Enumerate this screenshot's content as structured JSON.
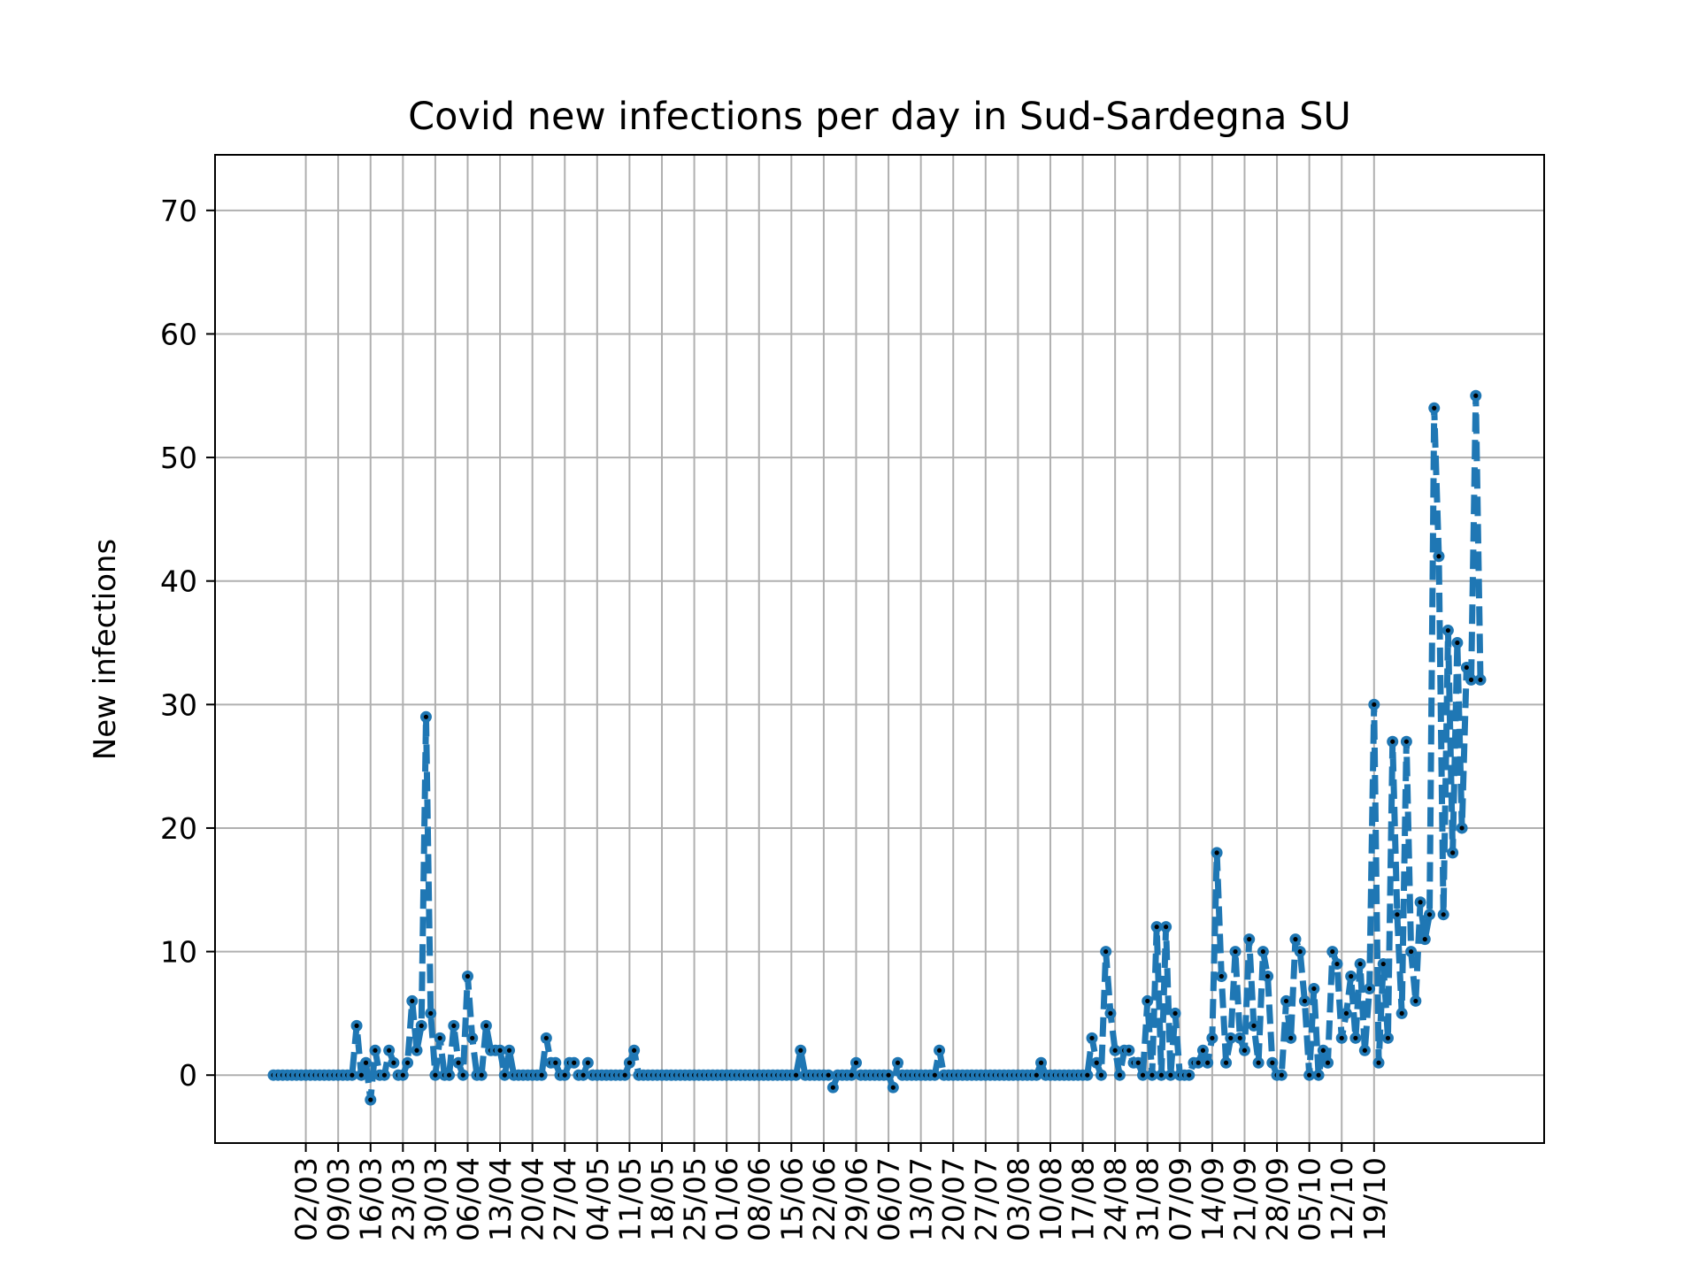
{
  "chart_data": {
    "type": "line",
    "title": "Covid new infections per day in Sud-Sardegna SU",
    "xlabel": "",
    "ylabel": "New infections",
    "start_date": "2020-02-24",
    "x_ticks": [
      "02/03",
      "09/03",
      "16/03",
      "23/03",
      "30/03",
      "06/04",
      "13/04",
      "20/04",
      "27/04",
      "04/05",
      "11/05",
      "18/05",
      "25/05",
      "01/06",
      "08/06",
      "15/06",
      "22/06",
      "29/06",
      "06/07",
      "13/07",
      "20/07",
      "27/07",
      "03/08",
      "10/08",
      "17/08",
      "24/08",
      "31/08",
      "07/09",
      "14/09",
      "21/09",
      "28/09",
      "05/10",
      "12/10",
      "19/10"
    ],
    "y_ticks": [
      0,
      10,
      20,
      30,
      40,
      50,
      60,
      70
    ],
    "ylim": [
      -5.5,
      74.5
    ],
    "grid": true,
    "style": {
      "line": "dashed",
      "marker": "circle",
      "color": "#1f77b4",
      "marker_center": "#000000"
    },
    "series": [
      {
        "values": [
          0,
          0,
          0,
          0,
          0,
          0,
          0,
          0,
          0,
          0,
          0,
          0,
          0,
          0,
          0,
          0,
          0,
          0,
          4,
          0,
          1,
          -2,
          2,
          0,
          0,
          2,
          1,
          0,
          0,
          1,
          6,
          2,
          4,
          29,
          5,
          0,
          3,
          0,
          0,
          4,
          1,
          0,
          8,
          3,
          0,
          0,
          4,
          2,
          2,
          2,
          0,
          2,
          0,
          0,
          0,
          0,
          0,
          0,
          0,
          3,
          1,
          1,
          0,
          0,
          1,
          1,
          0,
          0,
          1,
          0,
          0,
          0,
          0,
          0,
          0,
          0,
          0,
          1,
          2,
          0,
          0,
          0,
          0,
          0,
          0,
          0,
          0,
          0,
          0,
          0,
          0,
          0,
          0,
          0,
          0,
          0,
          0,
          0,
          0,
          0,
          0,
          0,
          0,
          0,
          0,
          0,
          0,
          0,
          0,
          0,
          0,
          0,
          0,
          0,
          2,
          0,
          0,
          0,
          0,
          0,
          0,
          -1,
          0,
          0,
          0,
          0,
          1,
          0,
          0,
          0,
          0,
          0,
          0,
          0,
          -1,
          1,
          0,
          0,
          0,
          0,
          0,
          0,
          0,
          0,
          2,
          0,
          0,
          0,
          0,
          0,
          0,
          0,
          0,
          0,
          0,
          0,
          0,
          0,
          0,
          0,
          0,
          0,
          0,
          0,
          0,
          0,
          1,
          0,
          0,
          0,
          0,
          0,
          0,
          0,
          0,
          0,
          0,
          3,
          1,
          0,
          10,
          5,
          2,
          0,
          2,
          2,
          1,
          1,
          0,
          6,
          0,
          12,
          0,
          12,
          0,
          5,
          0,
          0,
          0,
          1,
          1,
          2,
          1,
          3,
          18,
          8,
          1,
          3,
          10,
          3,
          2,
          11,
          4,
          1,
          10,
          8,
          1,
          0,
          0,
          6,
          3,
          11,
          10,
          6,
          0,
          7,
          0,
          2,
          1,
          10,
          9,
          3,
          5,
          8,
          3,
          9,
          2,
          7,
          30,
          1,
          9,
          3,
          27,
          13,
          5,
          27,
          10,
          6,
          14,
          11,
          13,
          54,
          42,
          13,
          36,
          18,
          35,
          20,
          33,
          32,
          55,
          32
        ]
      }
    ]
  }
}
